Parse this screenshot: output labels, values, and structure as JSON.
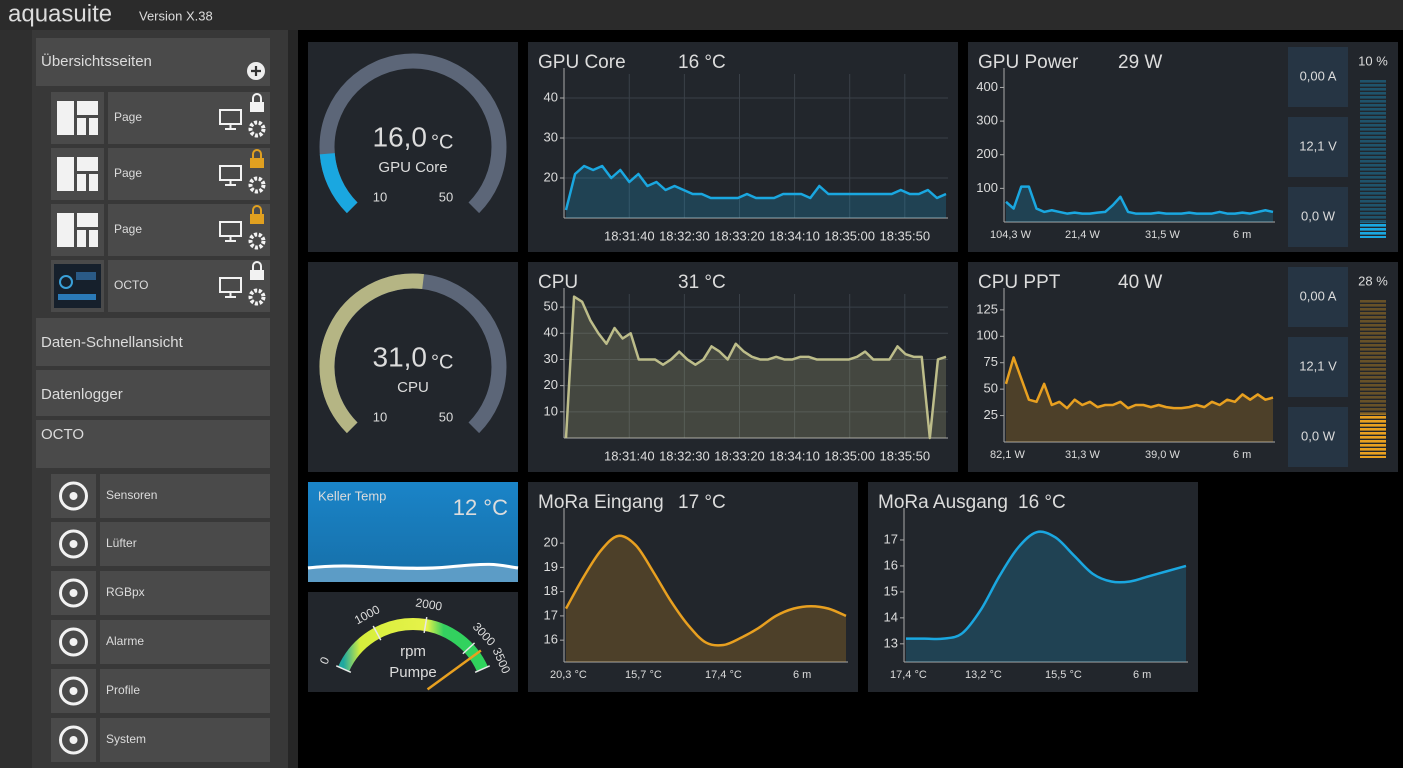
{
  "header": {
    "app": "aquasuite",
    "version": "Version X.38"
  },
  "sidebar": {
    "pages_title": "Übersichtsseiten",
    "pages": [
      "Page",
      "Page",
      "Page",
      "OCTO"
    ],
    "sections": [
      "Daten-Schnellansicht",
      "Datenlogger",
      "OCTO"
    ],
    "device_items": [
      "Sensoren",
      "Lüfter",
      "RGBpx",
      "Alarme",
      "Profile",
      "System"
    ]
  },
  "widgets": [
    {
      "type": "gauge",
      "value": {
        "value": 16,
        "label": "16,0"
      },
      "unit": "°C",
      "label": "GPU Core",
      "range": [
        10,
        50
      ],
      "color": "#1aa7e0"
    },
    {
      "type": "line",
      "title": "GPU Core",
      "current": "16 °C",
      "color": "#1aa7e0",
      "values": [
        12,
        21,
        23,
        22,
        23,
        20,
        22,
        19,
        21,
        18,
        19,
        17,
        18,
        17,
        16,
        16,
        15,
        15,
        15,
        15,
        16,
        15,
        15,
        15,
        16,
        16,
        16,
        15,
        18,
        16,
        16,
        16,
        16,
        16,
        16,
        16,
        16,
        17,
        16,
        16,
        17,
        15,
        16
      ],
      "ylim": [
        10,
        46
      ],
      "yticks": [
        20,
        30,
        40
      ],
      "grid": true,
      "xlabels": [
        "18:31:40",
        "18:32:30",
        "18:33:20",
        "18:34:10",
        "18:35:00",
        "18:35:50"
      ]
    },
    {
      "type": "line",
      "title": "GPU Power",
      "current": "29 W",
      "color": "#1aa7e0",
      "values": [
        60,
        40,
        105,
        105,
        40,
        30,
        35,
        30,
        25,
        28,
        25,
        25,
        28,
        30,
        50,
        75,
        30,
        25,
        25,
        25,
        28,
        25,
        25,
        25,
        28,
        25,
        25,
        25,
        30,
        25,
        25,
        28,
        25,
        30,
        35,
        30
      ],
      "ylim": [
        0,
        440
      ],
      "yticks": [
        100,
        200,
        300,
        400
      ],
      "stats": [
        "104,3 W",
        "21,4 W",
        "31,5 W",
        "6 m"
      ],
      "readouts": [
        "0,00 A",
        "12,1 V",
        "0,0 W"
      ],
      "load": {
        "value": 10,
        "label": "10 %"
      }
    },
    {
      "type": "gauge",
      "value": {
        "value": 31,
        "label": "31,0"
      },
      "unit": "°C",
      "label": "CPU",
      "range": [
        10,
        50
      ],
      "color": "#b5b584"
    },
    {
      "type": "line",
      "title": "CPU",
      "current": "31 °C",
      "color": "#bdbd8a",
      "values": [
        0,
        54,
        52,
        45,
        40,
        36,
        42,
        38,
        40,
        30,
        30,
        30,
        28,
        30,
        33,
        30,
        28,
        30,
        35,
        33,
        30,
        36,
        33,
        31,
        30,
        30,
        31,
        30,
        30,
        31,
        31,
        30,
        30,
        30,
        30,
        30,
        31,
        33,
        30,
        30,
        30,
        35,
        32,
        31,
        31,
        0,
        30,
        31
      ],
      "ylim": [
        0,
        55
      ],
      "yticks": [
        10,
        20,
        30,
        40,
        50
      ],
      "grid": true,
      "xlabels": [
        "18:31:40",
        "18:32:30",
        "18:33:20",
        "18:34:10",
        "18:35:00",
        "18:35:50"
      ]
    },
    {
      "type": "line",
      "title": "CPU PPT",
      "current": "40 W",
      "color": "#e8a020",
      "values": [
        55,
        80,
        60,
        40,
        38,
        55,
        35,
        38,
        32,
        40,
        35,
        38,
        33,
        35,
        35,
        38,
        32,
        35,
        35,
        33,
        35,
        33,
        32,
        32,
        33,
        35,
        33,
        38,
        35,
        40,
        38,
        45,
        40,
        45,
        40,
        42
      ],
      "ylim": [
        0,
        140
      ],
      "yticks": [
        25,
        50,
        75,
        100,
        125
      ],
      "stats": [
        "82,1 W",
        "31,3 W",
        "39,0 W",
        "6 m"
      ],
      "readouts": [
        "0,00 A",
        "12,1 V",
        "0,0 W"
      ],
      "load": {
        "value": 28,
        "label": "28 %"
      }
    },
    {
      "type": "tile",
      "title": "Keller Temp",
      "current": "12 °C"
    },
    {
      "type": "dial",
      "unit": "rpm",
      "label": "Pumpe",
      "range": [
        0,
        3500
      ],
      "ticks": [
        0,
        1000,
        2000,
        3000,
        3500
      ],
      "value": 3180
    },
    {
      "type": "line",
      "title": "MoRa Eingang",
      "current": "17 °C",
      "color": "#e8a020",
      "smooth": true,
      "values": [
        17.3,
        18.6,
        19.7,
        20.3,
        19.9,
        18.8,
        17.6,
        16.6,
        15.9,
        15.8,
        16.1,
        16.5,
        17.0,
        17.3,
        17.4,
        17.3,
        17.0
      ],
      "ylim": [
        15.1,
        21.2
      ],
      "yticks": [
        16,
        17,
        18,
        19,
        20
      ],
      "stats": [
        "20,3 °C",
        "15,7 °C",
        "17,4 °C",
        "6 m"
      ]
    },
    {
      "type": "line",
      "title": "MoRa Ausgang",
      "current": "16 °C",
      "color": "#1aa7e0",
      "smooth": true,
      "values": [
        13.2,
        13.2,
        13.2,
        13.4,
        14.3,
        15.6,
        16.7,
        17.3,
        17.1,
        16.4,
        15.7,
        15.4,
        15.4,
        15.6,
        15.8,
        16.0
      ],
      "ylim": [
        12.3,
        18
      ],
      "yticks": [
        13,
        14,
        15,
        16,
        17
      ],
      "stats": [
        "17,4 °C",
        "13,2 °C",
        "15,5 °C",
        "6 m"
      ]
    }
  ]
}
